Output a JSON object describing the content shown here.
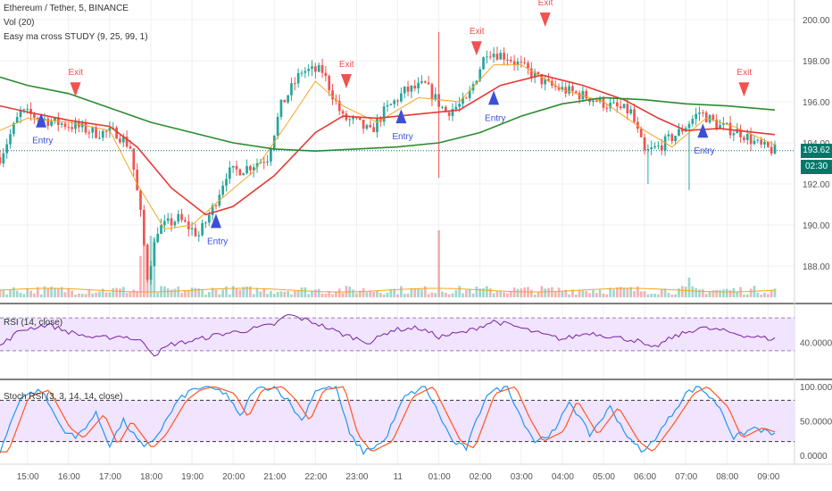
{
  "header": {
    "symbol": "Ethereum / Tether, 5, BINANCE",
    "vol": "Vol (20)",
    "study": "Easy ma cross STUDY (9, 25, 99, 1)"
  },
  "rsi_pane": {
    "title": "RSI (14, close)"
  },
  "stoch_pane": {
    "title": "Stoch RSI (3, 3, 14, 14, close)"
  },
  "last_price": {
    "price": "193.62",
    "countdown": "02:30"
  },
  "colors": {
    "up": "#26a69a",
    "down": "#ef5350",
    "ma_fast": "#f5a623",
    "ma_mid": "#e53935",
    "ma_slow": "#2e8b2e",
    "entry": "#3d4fd6",
    "exit": "#ef5350",
    "rsi_line": "#7b1fa2",
    "rsi_fill": "#f0e4ff",
    "stoch_k": "#2196f3",
    "stoch_d": "#ff5722",
    "price_tag": "#00796b"
  },
  "chart_data": [
    {
      "type": "candlestick",
      "title": "Ethereum / Tether, 5, BINANCE",
      "x_ticks": [
        "15:00",
        "16:00",
        "17:00",
        "18:00",
        "19:00",
        "20:00",
        "21:00",
        "22:00",
        "23:00",
        "11",
        "01:00",
        "02:00",
        "03:00",
        "04:00",
        "05:00",
        "06:00",
        "07:00",
        "08:00",
        "09:00"
      ],
      "y_ticks": [
        "188.00",
        "190.00",
        "192.00",
        "194.00",
        "196.00",
        "198.00",
        "200.00"
      ],
      "ylim": [
        187.0,
        200.6
      ],
      "x_range": [
        "14:20",
        "09:20"
      ],
      "close_anchors": [
        {
          "t": "14:20",
          "p": 193.3
        },
        {
          "t": "14:50",
          "p": 195.5
        },
        {
          "t": "15:10",
          "p": 195.3
        },
        {
          "t": "15:40",
          "p": 195.0
        },
        {
          "t": "16:10",
          "p": 194.8
        },
        {
          "t": "16:40",
          "p": 194.5
        },
        {
          "t": "17:10",
          "p": 194.5
        },
        {
          "t": "17:30",
          "p": 193.8
        },
        {
          "t": "17:45",
          "p": 190.5
        },
        {
          "t": "17:55",
          "p": 187.5
        },
        {
          "t": "18:10",
          "p": 189.8
        },
        {
          "t": "18:40",
          "p": 190.3
        },
        {
          "t": "19:10",
          "p": 189.5
        },
        {
          "t": "19:30",
          "p": 190.8
        },
        {
          "t": "19:50",
          "p": 192.5
        },
        {
          "t": "20:20",
          "p": 192.8
        },
        {
          "t": "20:50",
          "p": 193.3
        },
        {
          "t": "21:10",
          "p": 195.8
        },
        {
          "t": "21:40",
          "p": 197.5
        },
        {
          "t": "22:10",
          "p": 197.5
        },
        {
          "t": "22:40",
          "p": 195.2
        },
        {
          "t": "23:00",
          "p": 195.0
        },
        {
          "t": "23:20",
          "p": 194.5
        },
        {
          "t": "23:40",
          "p": 195.5
        },
        {
          "t": "00:10",
          "p": 196.5
        },
        {
          "t": "00:40",
          "p": 196.8
        },
        {
          "t": "01:10",
          "p": 195.5
        },
        {
          "t": "01:40",
          "p": 196.0
        },
        {
          "t": "02:10",
          "p": 198.5
        },
        {
          "t": "02:40",
          "p": 198.2
        },
        {
          "t": "03:10",
          "p": 197.5
        },
        {
          "t": "03:40",
          "p": 196.8
        },
        {
          "t": "04:10",
          "p": 196.5
        },
        {
          "t": "04:40",
          "p": 196.2
        },
        {
          "t": "05:10",
          "p": 195.8
        },
        {
          "t": "05:40",
          "p": 195.5
        },
        {
          "t": "06:00",
          "p": 193.5
        },
        {
          "t": "06:20",
          "p": 193.8
        },
        {
          "t": "06:50",
          "p": 194.5
        },
        {
          "t": "07:20",
          "p": 195.5
        },
        {
          "t": "07:50",
          "p": 194.8
        },
        {
          "t": "08:20",
          "p": 194.5
        },
        {
          "t": "08:50",
          "p": 193.8
        },
        {
          "t": "09:10",
          "p": 193.62
        }
      ],
      "moving_averages": [
        {
          "name": "MA 9",
          "points": [
            [
              "14:20",
              194.6
            ],
            [
              "15:00",
              195.2
            ],
            [
              "16:00",
              195.0
            ],
            [
              "17:00",
              194.6
            ],
            [
              "17:40",
              192.0
            ],
            [
              "18:20",
              189.8
            ],
            [
              "19:00",
              190.0
            ],
            [
              "19:40",
              191.2
            ],
            [
              "20:30",
              192.6
            ],
            [
              "21:20",
              195.0
            ],
            [
              "22:00",
              197.0
            ],
            [
              "22:40",
              195.8
            ],
            [
              "23:30",
              195.0
            ],
            [
              "00:30",
              196.2
            ],
            [
              "01:30",
              196.0
            ],
            [
              "02:20",
              197.8
            ],
            [
              "03:00",
              197.8
            ],
            [
              "04:00",
              196.6
            ],
            [
              "05:00",
              196.0
            ],
            [
              "06:00",
              194.6
            ],
            [
              "06:40",
              193.8
            ],
            [
              "07:30",
              195.2
            ],
            [
              "08:10",
              194.8
            ],
            [
              "09:10",
              193.9
            ]
          ]
        },
        {
          "name": "MA 25",
          "points": [
            [
              "14:20",
              195.8
            ],
            [
              "15:00",
              195.5
            ],
            [
              "16:00",
              195.1
            ],
            [
              "17:00",
              194.8
            ],
            [
              "17:40",
              193.8
            ],
            [
              "18:30",
              191.8
            ],
            [
              "19:20",
              190.5
            ],
            [
              "20:00",
              190.9
            ],
            [
              "21:00",
              192.4
            ],
            [
              "22:00",
              194.5
            ],
            [
              "22:40",
              195.3
            ],
            [
              "23:30",
              195.2
            ],
            [
              "00:30",
              195.4
            ],
            [
              "01:30",
              195.6
            ],
            [
              "02:30",
              196.8
            ],
            [
              "03:30",
              197.3
            ],
            [
              "04:30",
              196.8
            ],
            [
              "05:30",
              196.1
            ],
            [
              "06:20",
              195.2
            ],
            [
              "07:00",
              194.6
            ],
            [
              "07:50",
              194.7
            ],
            [
              "09:10",
              194.4
            ]
          ]
        },
        {
          "name": "MA 99",
          "points": [
            [
              "14:20",
              197.2
            ],
            [
              "15:00",
              196.8
            ],
            [
              "16:00",
              196.4
            ],
            [
              "17:00",
              195.7
            ],
            [
              "18:00",
              195.0
            ],
            [
              "19:00",
              194.5
            ],
            [
              "20:00",
              194.0
            ],
            [
              "21:00",
              193.7
            ],
            [
              "22:00",
              193.6
            ],
            [
              "23:00",
              193.7
            ],
            [
              "00:00",
              193.8
            ],
            [
              "01:00",
              194.0
            ],
            [
              "02:00",
              194.5
            ],
            [
              "03:00",
              195.3
            ],
            [
              "04:00",
              195.9
            ],
            [
              "05:00",
              196.2
            ],
            [
              "06:00",
              196.1
            ],
            [
              "07:00",
              195.9
            ],
            [
              "08:00",
              195.8
            ],
            [
              "09:10",
              195.6
            ]
          ]
        }
      ],
      "signals": [
        {
          "label": "Entry",
          "t": "15:20",
          "p": 195.1
        },
        {
          "label": "Exit",
          "t": "16:10",
          "p": 196.6
        },
        {
          "label": "Entry",
          "t": "19:35",
          "p": 190.2
        },
        {
          "label": "Exit",
          "t": "22:45",
          "p": 197.0
        },
        {
          "label": "Entry",
          "t": "00:05",
          "p": 195.3
        },
        {
          "label": "Exit",
          "t": "01:55",
          "p": 198.6
        },
        {
          "label": "Entry",
          "t": "02:20",
          "p": 196.2
        },
        {
          "label": "Exit",
          "t": "03:35",
          "p": 200.0
        },
        {
          "label": "Entry",
          "t": "07:25",
          "p": 194.6
        },
        {
          "label": "Exit",
          "t": "08:25",
          "p": 196.6
        }
      ],
      "last_price": 193.62
    },
    {
      "type": "bar",
      "title": "Vol (20)",
      "note": "volume histogram at bottom of price pane, green/red by candle direction, with orange 20-period average"
    },
    {
      "type": "line",
      "title": "RSI (14, close)",
      "y_ticks": [
        "40.0000"
      ],
      "ylim": [
        20,
        80
      ],
      "bands": [
        30,
        70
      ],
      "anchors": [
        {
          "t": "14:20",
          "v": 36
        },
        {
          "t": "14:50",
          "v": 55
        },
        {
          "t": "15:30",
          "v": 62
        },
        {
          "t": "16:00",
          "v": 53
        },
        {
          "t": "16:40",
          "v": 45
        },
        {
          "t": "17:20",
          "v": 48
        },
        {
          "t": "17:50",
          "v": 40
        },
        {
          "t": "18:05",
          "v": 25
        },
        {
          "t": "18:30",
          "v": 38
        },
        {
          "t": "19:00",
          "v": 42
        },
        {
          "t": "19:40",
          "v": 50
        },
        {
          "t": "20:20",
          "v": 55
        },
        {
          "t": "21:00",
          "v": 62
        },
        {
          "t": "21:20",
          "v": 74
        },
        {
          "t": "22:00",
          "v": 64
        },
        {
          "t": "22:40",
          "v": 50
        },
        {
          "t": "23:20",
          "v": 40
        },
        {
          "t": "23:50",
          "v": 55
        },
        {
          "t": "00:30",
          "v": 58
        },
        {
          "t": "01:00",
          "v": 47
        },
        {
          "t": "01:40",
          "v": 53
        },
        {
          "t": "02:20",
          "v": 66
        },
        {
          "t": "02:50",
          "v": 60
        },
        {
          "t": "03:30",
          "v": 50
        },
        {
          "t": "04:00",
          "v": 44
        },
        {
          "t": "04:40",
          "v": 52
        },
        {
          "t": "05:20",
          "v": 46
        },
        {
          "t": "05:50",
          "v": 42
        },
        {
          "t": "06:10",
          "v": 32
        },
        {
          "t": "06:40",
          "v": 46
        },
        {
          "t": "07:20",
          "v": 58
        },
        {
          "t": "07:50",
          "v": 55
        },
        {
          "t": "08:30",
          "v": 48
        },
        {
          "t": "09:10",
          "v": 44
        }
      ]
    },
    {
      "type": "line",
      "title": "Stoch RSI (3, 3, 14, 14, close)",
      "y_ticks": [
        "100.0000",
        "50.0000",
        "0.0000"
      ],
      "ylim": [
        0,
        100
      ],
      "bands": [
        20,
        80
      ],
      "anchors": [
        {
          "t": "14:20",
          "v": 5
        },
        {
          "t": "14:50",
          "v": 85
        },
        {
          "t": "15:20",
          "v": 95
        },
        {
          "t": "15:50",
          "v": 40
        },
        {
          "t": "16:10",
          "v": 25
        },
        {
          "t": "16:40",
          "v": 60
        },
        {
          "t": "17:00",
          "v": 15
        },
        {
          "t": "17:20",
          "v": 50
        },
        {
          "t": "17:50",
          "v": 10
        },
        {
          "t": "18:10",
          "v": 30
        },
        {
          "t": "18:40",
          "v": 80
        },
        {
          "t": "19:00",
          "v": 95
        },
        {
          "t": "19:20",
          "v": 100
        },
        {
          "t": "19:50",
          "v": 90
        },
        {
          "t": "20:10",
          "v": 55
        },
        {
          "t": "20:30",
          "v": 95
        },
        {
          "t": "21:00",
          "v": 100
        },
        {
          "t": "21:20",
          "v": 80
        },
        {
          "t": "21:40",
          "v": 50
        },
        {
          "t": "22:00",
          "v": 95
        },
        {
          "t": "22:30",
          "v": 100
        },
        {
          "t": "22:50",
          "v": 30
        },
        {
          "t": "23:10",
          "v": 5
        },
        {
          "t": "23:40",
          "v": 20
        },
        {
          "t": "00:10",
          "v": 85
        },
        {
          "t": "00:40",
          "v": 100
        },
        {
          "t": "01:00",
          "v": 60
        },
        {
          "t": "01:20",
          "v": 20
        },
        {
          "t": "01:40",
          "v": 10
        },
        {
          "t": "02:10",
          "v": 90
        },
        {
          "t": "02:40",
          "v": 100
        },
        {
          "t": "03:00",
          "v": 55
        },
        {
          "t": "03:20",
          "v": 20
        },
        {
          "t": "03:50",
          "v": 35
        },
        {
          "t": "04:10",
          "v": 80
        },
        {
          "t": "04:40",
          "v": 30
        },
        {
          "t": "05:10",
          "v": 70
        },
        {
          "t": "05:40",
          "v": 20
        },
        {
          "t": "06:00",
          "v": 5
        },
        {
          "t": "06:30",
          "v": 45
        },
        {
          "t": "07:00",
          "v": 90
        },
        {
          "t": "07:20",
          "v": 100
        },
        {
          "t": "07:50",
          "v": 70
        },
        {
          "t": "08:10",
          "v": 25
        },
        {
          "t": "08:40",
          "v": 40
        },
        {
          "t": "09:10",
          "v": 30
        }
      ]
    }
  ]
}
